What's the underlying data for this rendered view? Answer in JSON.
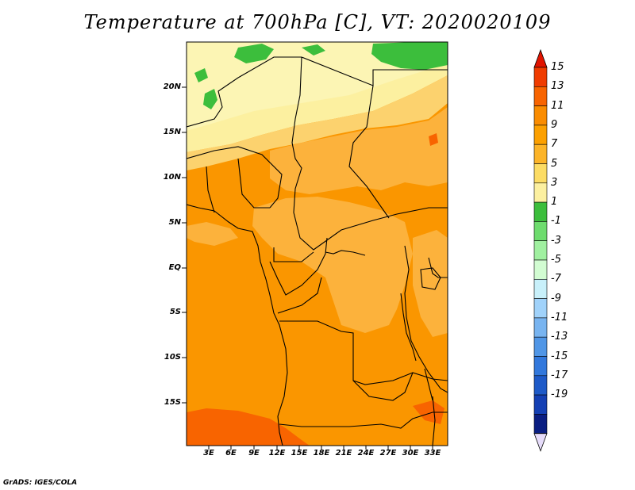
{
  "title": "Temperature at 700hPa [C], VT: 2020020109",
  "credit": "GrADS: IGES/COLA",
  "map": {
    "lat_labels": [
      "20N",
      "15N",
      "10N",
      "5N",
      "EQ",
      "5S",
      "10S",
      "15S"
    ],
    "lon_labels": [
      "3E",
      "6E",
      "9E",
      "12E",
      "15E",
      "18E",
      "21E",
      "24E",
      "27E",
      "30E",
      "33E"
    ]
  },
  "colorbar": {
    "labels": [
      "15",
      "13",
      "11",
      "9",
      "7",
      "5",
      "3",
      "1",
      "-1",
      "-3",
      "-5",
      "-7",
      "-9",
      "-11",
      "-13",
      "-15",
      "-17",
      "-19"
    ],
    "colors": [
      "#e11400",
      "#f03c00",
      "#f86400",
      "#fa8c00",
      "#fca000",
      "#fcb428",
      "#fcdc64",
      "#fcf0a0",
      "#3cbe3c",
      "#6edc6e",
      "#a0f0a0",
      "#d2fcd2",
      "#c8f0fa",
      "#a0d2fa",
      "#78b4f0",
      "#5096e6",
      "#3278dc",
      "#1e5ac8",
      "#1440b4",
      "#0a1e82",
      "#e6dcfa"
    ]
  }
}
